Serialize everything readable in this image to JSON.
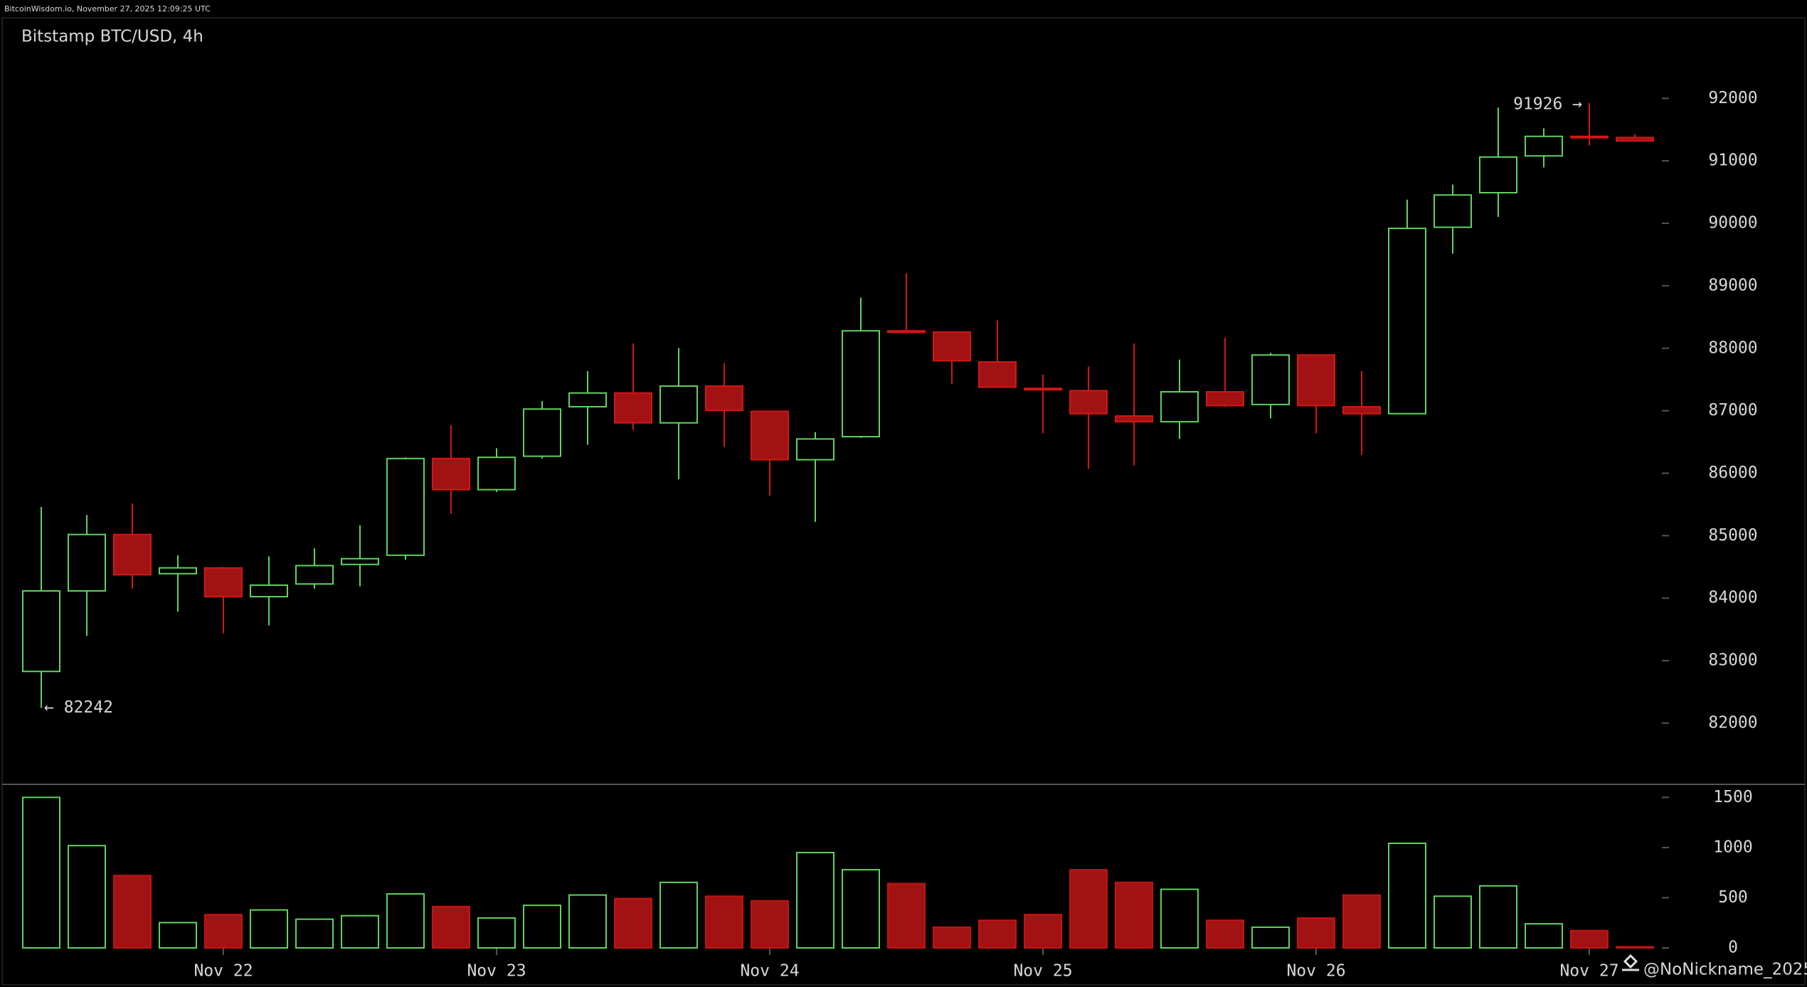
{
  "header": "BitcoinWisdom.io, November 27, 2025 12:09:25 UTC",
  "watermark": "@NoNickname_2025",
  "chart_data": {
    "type": "candlestick",
    "title": "Bitstamp BTC/USD, 4h",
    "categories": [
      null,
      null,
      null,
      null,
      "Nov 22",
      null,
      null,
      null,
      null,
      null,
      "Nov 23",
      null,
      null,
      null,
      null,
      null,
      "Nov 24",
      null,
      null,
      null,
      null,
      null,
      "Nov 25",
      null,
      null,
      null,
      null,
      null,
      "Nov 26",
      null,
      null,
      null,
      null,
      null,
      "Nov 27",
      null
    ],
    "open": [
      82827,
      84116,
      85019,
      84392,
      84485,
      84024,
      84227,
      84540,
      84687,
      86235,
      85737,
      86272,
      87064,
      87284,
      86806,
      87395,
      86990,
      86216,
      86585,
      88279,
      88260,
      87782,
      87358,
      87321,
      86916,
      86824,
      87303,
      87100,
      87892,
      87064,
      86953,
      89937,
      90490,
      91079,
      91392,
      91374
    ],
    "high": [
      85461,
      85332,
      85516,
      84687,
      84500,
      84669,
      84798,
      85166,
      86254,
      86769,
      86400,
      87156,
      87635,
      88077,
      88003,
      87763,
      87000,
      86658,
      88813,
      89200,
      88270,
      88445,
      87579,
      87708,
      88077,
      87819,
      88169,
      87929,
      87900,
      87635,
      90379,
      90619,
      91853,
      91521,
      91926,
      91429
    ],
    "low": [
      82242,
      83398,
      84153,
      83785,
      83435,
      83564,
      84153,
      84190,
      84613,
      85350,
      85700,
      86235,
      86456,
      86695,
      85903,
      86419,
      85645,
      85221,
      86566,
      88242,
      87432,
      87370,
      86640,
      86069,
      86124,
      86548,
      87064,
      86879,
      86640,
      86290,
      86953,
      89513,
      90103,
      90895,
      91245,
      91318
    ],
    "close": [
      84116,
      85019,
      84374,
      84485,
      84024,
      84208,
      84521,
      84632,
      86235,
      85737,
      86254,
      87027,
      87284,
      86806,
      87395,
      87008,
      86216,
      86548,
      88279,
      88260,
      87800,
      87377,
      87340,
      86953,
      86824,
      87303,
      87082,
      87892,
      87082,
      86953,
      89919,
      90453,
      91061,
      91392,
      91374,
      91318
    ],
    "volume": [
      1500,
      1019,
      721,
      252,
      332,
      378,
      286,
      321,
      538,
      412,
      298,
      424,
      527,
      492,
      653,
      515,
      469,
      950,
      779,
      641,
      206,
      275,
      332,
      779,
      653,
      584,
      275,
      206,
      298,
      527,
      1042,
      515,
      618,
      240,
      172,
      11
    ],
    "up_color": "#5fd35f",
    "down_color": "#a31212",
    "ylim": [
      81020,
      93290
    ],
    "yticks": [
      82000,
      83000,
      84000,
      85000,
      86000,
      87000,
      88000,
      89000,
      90000,
      91000,
      92000
    ],
    "volume_ylim": [
      0,
      1630
    ],
    "volume_yticks": [
      0,
      500,
      1000,
      1500
    ],
    "high_label": "91926 →",
    "low_label": "← 82242"
  }
}
